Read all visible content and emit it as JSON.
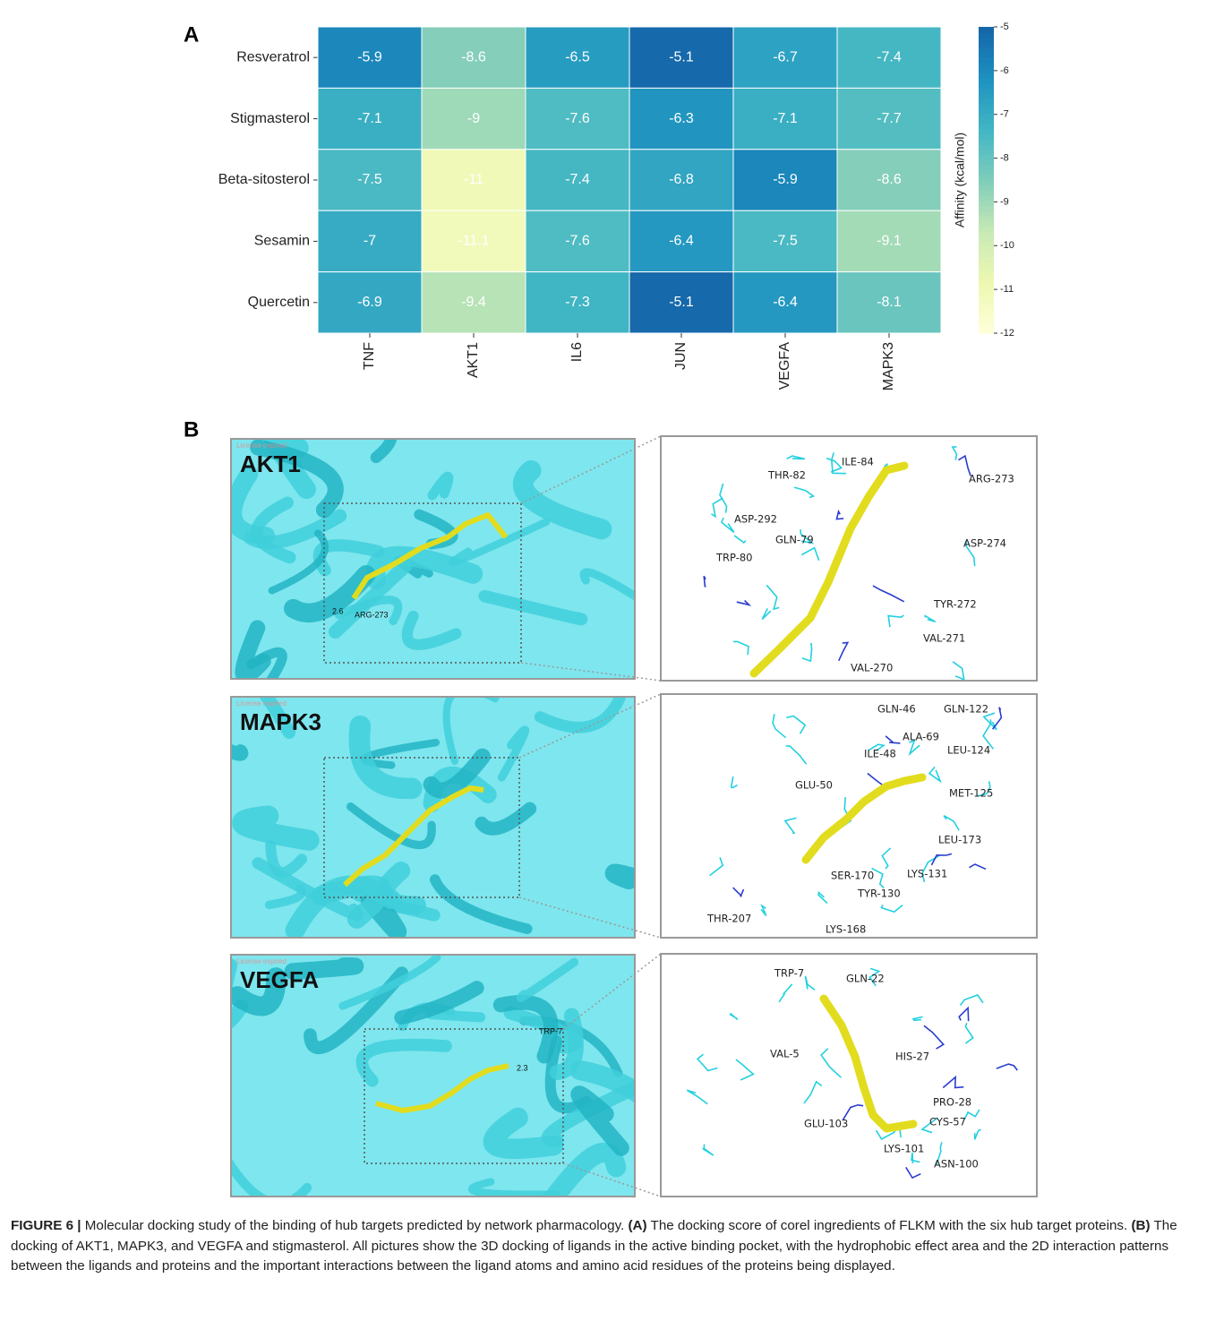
{
  "chart_data": {
    "type": "heatmap",
    "panel_label": "A",
    "rows": [
      "Resveratrol",
      "Stigmasterol",
      "Beta-sitosterol",
      "Sesamin",
      "Quercetin"
    ],
    "columns": [
      "TNF",
      "AKT1",
      "IL6",
      "JUN",
      "VEGFA",
      "MAPK3"
    ],
    "values": [
      [
        -5.9,
        -8.6,
        -6.5,
        -5.1,
        -6.7,
        -7.4
      ],
      [
        -7.1,
        -9,
        -7.6,
        -6.3,
        -7.1,
        -7.7
      ],
      [
        -7.5,
        -11,
        -7.4,
        -6.8,
        -5.9,
        -8.6
      ],
      [
        -7,
        -11.1,
        -7.6,
        -6.4,
        -7.5,
        -9.1
      ],
      [
        -6.9,
        -9.4,
        -7.3,
        -5.1,
        -6.4,
        -8.1
      ]
    ],
    "colorbar": {
      "label": "Affinity (kcal/mol)",
      "lim": [
        -12,
        -5
      ],
      "ticks": [
        -5,
        -6,
        -7,
        -8,
        -9,
        -10,
        -11,
        -12
      ]
    },
    "colormap": [
      "#ffffd9",
      "#edf8b1",
      "#c7e9b4",
      "#7fcdbb",
      "#41b6c4",
      "#1d91c0",
      "#1565a8"
    ]
  },
  "panel_b": {
    "label": "B",
    "rows": [
      {
        "protein": "AKT1",
        "watermark": "License expired",
        "overview_labels": [
          "2.6",
          "ARG-273"
        ],
        "closeup_labels": [
          "THR-82",
          "ILE-84",
          "ARG-273",
          "ASP-292",
          "GLN-79",
          "ASP-274",
          "TRP-80",
          "TYR-272",
          "VAL-271",
          "VAL-270"
        ]
      },
      {
        "protein": "MAPK3",
        "watermark": "License expired",
        "overview_labels": [],
        "closeup_labels": [
          "GLN-46",
          "GLN-122",
          "ALA-69",
          "LEU-124",
          "ILE-48",
          "GLU-50",
          "MET-125",
          "LEU-173",
          "SER-170",
          "LYS-131",
          "TYR-130",
          "THR-207",
          "LYS-168"
        ]
      },
      {
        "protein": "VEGFA",
        "watermark": "License expired",
        "overview_labels": [
          "TRP-7",
          "2.3"
        ],
        "closeup_labels": [
          "TRP-7",
          "GLN-22",
          "VAL-5",
          "HIS-27",
          "PRO-28",
          "CYS-57",
          "GLU-103",
          "LYS-101",
          "ASN-100"
        ]
      }
    ]
  },
  "caption": {
    "label": "FIGURE 6 |",
    "text1": "Molecular docking study of the binding of hub targets predicted by network pharmacology.",
    "tag_a": "(A)",
    "text_a": "The docking score of corel ingredients of FLKM with the six hub target proteins.",
    "tag_b": "(B)",
    "text_b": "The docking of AKT1, MAPK3, and VEGFA and stigmasterol. All pictures show the 3D docking of ligands in the active binding pocket, with the hydrophobic effect area and the 2D interaction patterns between the ligands and proteins and the important interactions between the ligand atoms and amino acid residues of the proteins being displayed."
  }
}
